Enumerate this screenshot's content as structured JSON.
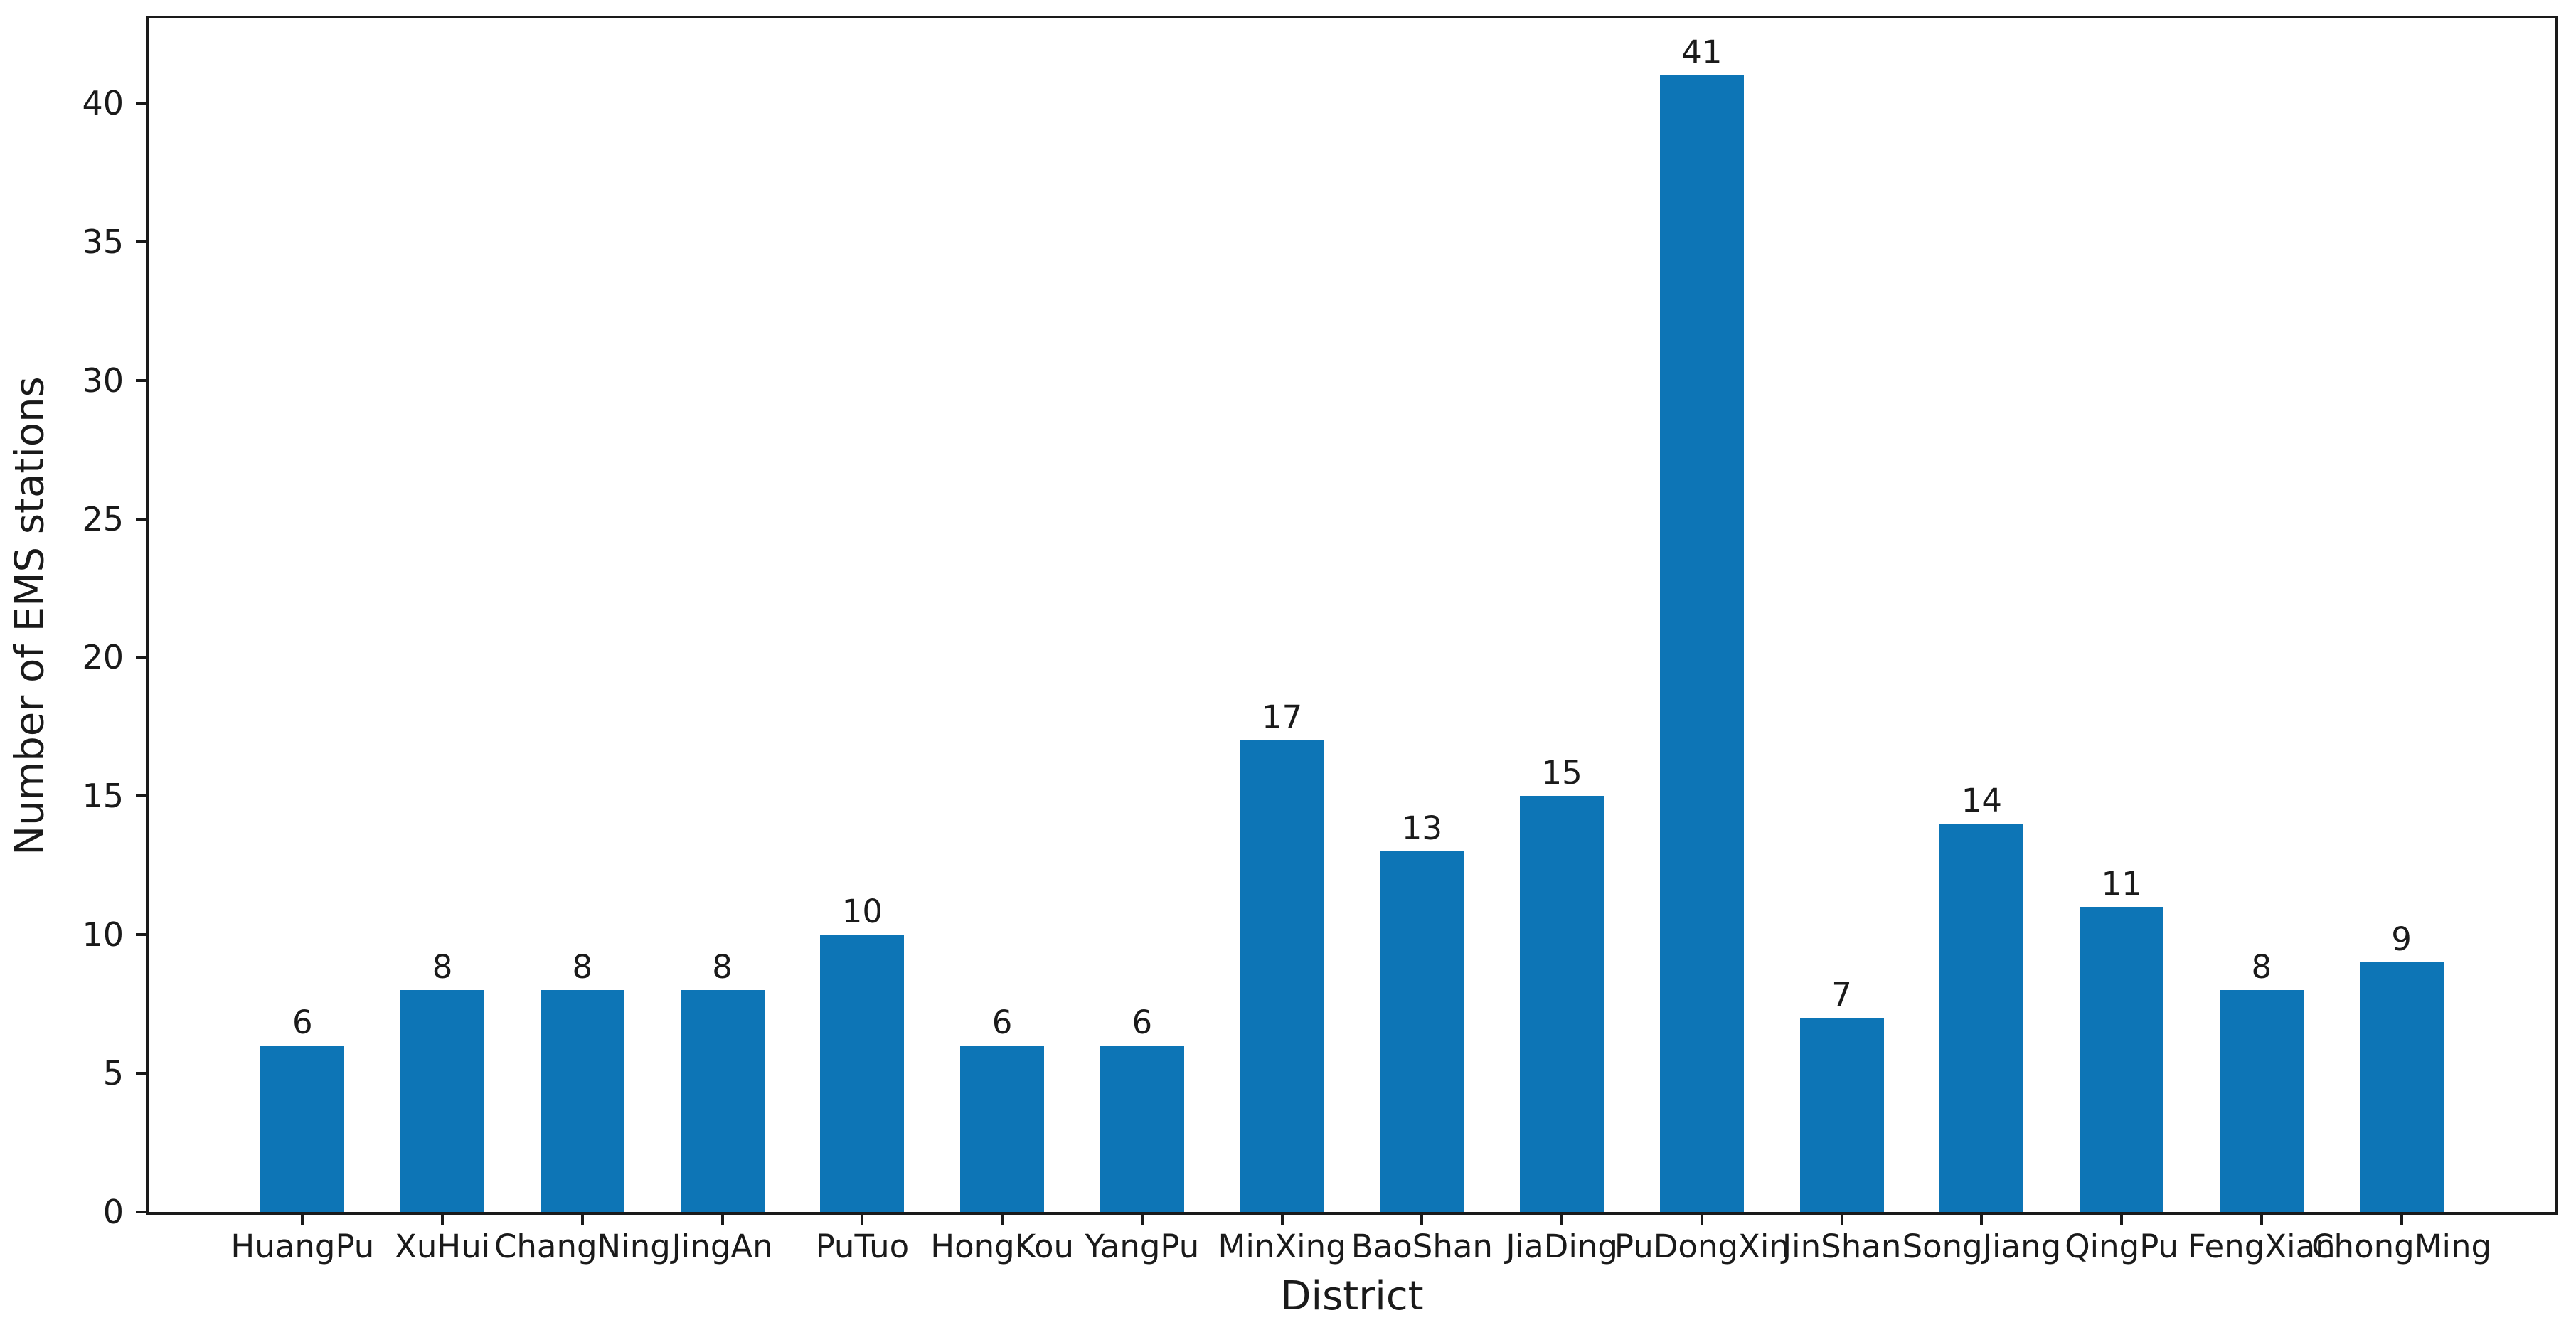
{
  "figure": {
    "background_color": "#ffffff",
    "axis_color": "#1a1a1a",
    "text_color": "#1a1a1a"
  },
  "chart_data": {
    "type": "bar",
    "title": "",
    "xlabel": "District",
    "ylabel": "Number of EMS stations",
    "categories": [
      "HuangPu",
      "XuHui",
      "ChangNing",
      "JingAn",
      "PuTuo",
      "HongKou",
      "YangPu",
      "MinXing",
      "BaoShan",
      "JiaDing",
      "PuDongXin",
      "JinShan",
      "SongJiang",
      "QingPu",
      "FengXian",
      "ChongMing"
    ],
    "values": [
      6,
      8,
      8,
      8,
      10,
      6,
      6,
      17,
      13,
      15,
      41,
      7,
      14,
      11,
      8,
      9
    ],
    "bar_value_labels": [
      "6",
      "8",
      "8",
      "8",
      "10",
      "6",
      "6",
      "17",
      "13",
      "15",
      "41",
      "7",
      "14",
      "11",
      "8",
      "9"
    ],
    "yticks": [
      0,
      5,
      10,
      15,
      20,
      25,
      30,
      35,
      40
    ],
    "ylim": [
      0,
      43.05
    ],
    "bar_color": "#0d75b6",
    "grid": false,
    "legend_position": "none",
    "bar_width_fraction": 0.6
  }
}
